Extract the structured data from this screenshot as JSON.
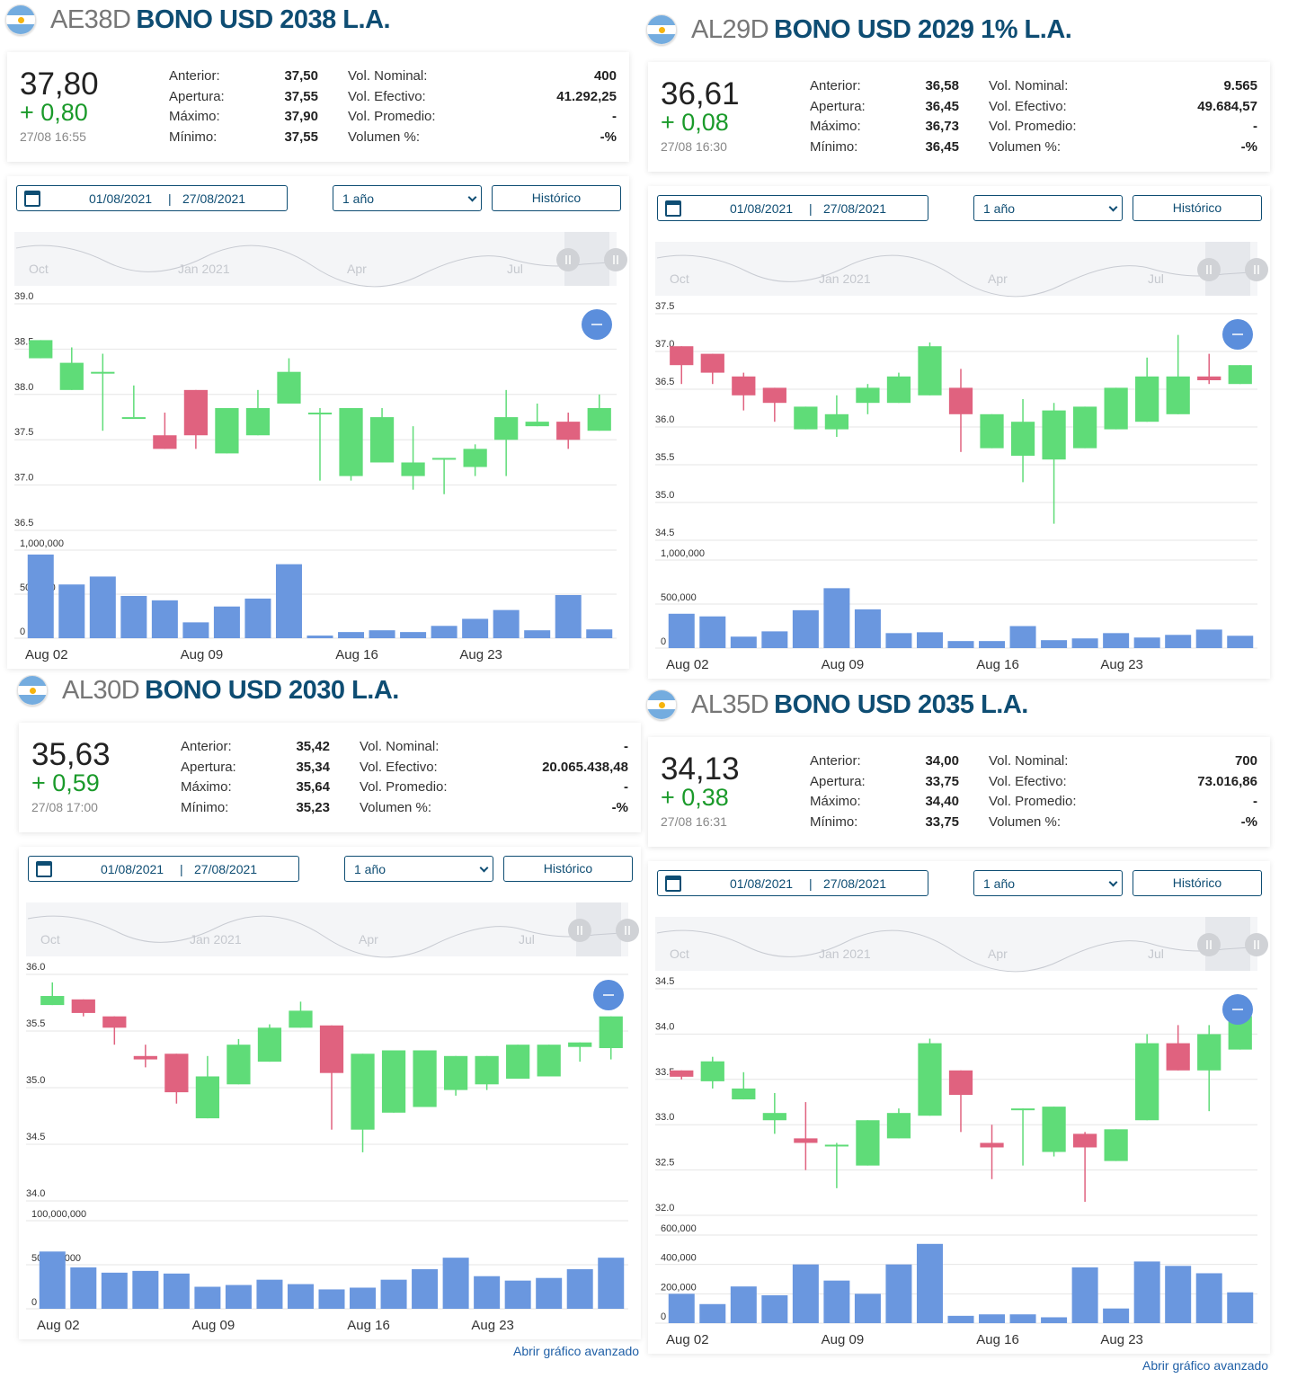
{
  "labels": {
    "anterior": "Anterior:",
    "apertura": "Apertura:",
    "maximo": "Máximo:",
    "minimo": "Mínimo:",
    "vol_nominal": "Vol. Nominal:",
    "vol_efectivo": "Vol. Efectivo:",
    "vol_promedio": "Vol. Promedio:",
    "volumen_pct": "Volumen %:",
    "date_sep": "|",
    "historico": "Histórico",
    "abrir": "Abrir gráfico avanzado"
  },
  "colors": {
    "up": "#5fdc78",
    "down": "#e0627f",
    "volume": "#6a97df",
    "title": "#0e4d73",
    "change": "#1a9a2a"
  },
  "panels": [
    {
      "ticker": "AE38D",
      "name": "BONO USD 2038 L.A.",
      "price": "37,80",
      "change": "+ 0,80",
      "time": "27/08 16:55",
      "anterior": "37,50",
      "apertura": "37,55",
      "maximo": "37,90",
      "minimo": "37,55",
      "vol_nominal": "400",
      "vol_efectivo": "41.292,25",
      "vol_promedio": "-",
      "volumen_pct": "-%",
      "date_from": "01/08/2021",
      "date_to": "27/08/2021",
      "range": "1 año",
      "advanced_link": "",
      "navigator_labels": [
        "Oct",
        "Jan 2021",
        "Apr",
        "Jul"
      ],
      "chart_data": {
        "type": "candlestick",
        "x_ticks": [
          "Aug 02",
          "Aug 09",
          "Aug 16",
          "Aug 23"
        ],
        "y_ticks": [
          "39.0",
          "38.5",
          "38.0",
          "37.5",
          "37.0",
          "36.5"
        ],
        "ylim": [
          36.5,
          39.0
        ],
        "vol_ticks": [
          "1,000,000",
          "500,000",
          "0"
        ],
        "vol_max": 1000000,
        "candles": [
          {
            "d": "Aug 02",
            "o": 38.3,
            "h": 38.5,
            "l": 38.3,
            "c": 38.5
          },
          {
            "d": "Aug 03",
            "o": 37.95,
            "h": 38.42,
            "l": 37.95,
            "c": 38.25
          },
          {
            "d": "Aug 04",
            "o": 38.15,
            "h": 38.35,
            "l": 37.5,
            "c": 38.15
          },
          {
            "d": "Aug 05",
            "o": 37.65,
            "h": 38.0,
            "l": 37.65,
            "c": 37.65
          },
          {
            "d": "Aug 06",
            "o": 37.45,
            "h": 37.7,
            "l": 37.3,
            "c": 37.3
          },
          {
            "d": "Aug 09",
            "o": 37.95,
            "h": 37.95,
            "l": 37.3,
            "c": 37.45
          },
          {
            "d": "Aug 10",
            "o": 37.25,
            "h": 37.75,
            "l": 37.25,
            "c": 37.75
          },
          {
            "d": "Aug 11",
            "o": 37.45,
            "h": 37.95,
            "l": 37.45,
            "c": 37.75
          },
          {
            "d": "Aug 12",
            "o": 37.8,
            "h": 38.3,
            "l": 37.8,
            "c": 38.15
          },
          {
            "d": "Aug 13",
            "o": 37.7,
            "h": 37.75,
            "l": 36.95,
            "c": 37.7
          },
          {
            "d": "Aug 16",
            "o": 37.0,
            "h": 37.75,
            "l": 36.95,
            "c": 37.75
          },
          {
            "d": "Aug 17",
            "o": 37.15,
            "h": 37.75,
            "l": 37.15,
            "c": 37.65
          },
          {
            "d": "Aug 18",
            "o": 37.0,
            "h": 37.55,
            "l": 36.85,
            "c": 37.15
          },
          {
            "d": "Aug 19",
            "o": 37.2,
            "h": 37.2,
            "l": 36.8,
            "c": 37.2
          },
          {
            "d": "Aug 23",
            "o": 37.1,
            "h": 37.35,
            "l": 37.0,
            "c": 37.3
          },
          {
            "d": "Aug 24",
            "o": 37.4,
            "h": 37.95,
            "l": 37.0,
            "c": 37.65
          },
          {
            "d": "Aug 25",
            "o": 37.55,
            "h": 37.8,
            "l": 37.55,
            "c": 37.6
          },
          {
            "d": "Aug 26",
            "o": 37.6,
            "h": 37.7,
            "l": 37.3,
            "c": 37.4
          },
          {
            "d": "Aug 27",
            "o": 37.5,
            "h": 37.9,
            "l": 37.5,
            "c": 37.75
          }
        ],
        "volumes": [
          950000,
          610000,
          700000,
          480000,
          430000,
          180000,
          360000,
          450000,
          840000,
          30000,
          70000,
          90000,
          70000,
          140000,
          220000,
          320000,
          90000,
          490000,
          100000
        ]
      }
    },
    {
      "ticker": "AL29D",
      "name": "BONO USD 2029 1% L.A.",
      "price": "36,61",
      "change": "+ 0,08",
      "time": "27/08 16:30",
      "anterior": "36,58",
      "apertura": "36,45",
      "maximo": "36,73",
      "minimo": "36,45",
      "vol_nominal": "9.565",
      "vol_efectivo": "49.684,57",
      "vol_promedio": "-",
      "volumen_pct": "-%",
      "date_from": "01/08/2021",
      "date_to": "27/08/2021",
      "range": "1 año",
      "advanced_link": "",
      "navigator_labels": [
        "Oct",
        "Jan 2021",
        "Apr",
        "Jul"
      ],
      "chart_data": {
        "type": "candlestick",
        "x_ticks": [
          "Aug 02",
          "Aug 09",
          "Aug 16",
          "Aug 23"
        ],
        "y_ticks": [
          "37.5",
          "37.0",
          "36.5",
          "36.0",
          "35.5",
          "35.0",
          "34.5"
        ],
        "ylim": [
          34.5,
          37.5
        ],
        "vol_ticks": [
          "1,000,000",
          "500,000",
          "0"
        ],
        "vol_max": 1000000,
        "candles": [
          {
            "d": "Aug 02",
            "o": 36.95,
            "h": 36.95,
            "l": 36.45,
            "c": 36.7
          },
          {
            "d": "Aug 03",
            "o": 36.85,
            "h": 36.85,
            "l": 36.45,
            "c": 36.6
          },
          {
            "d": "Aug 04",
            "o": 36.55,
            "h": 36.6,
            "l": 36.1,
            "c": 36.3
          },
          {
            "d": "Aug 05",
            "o": 36.4,
            "h": 36.4,
            "l": 35.95,
            "c": 36.2
          },
          {
            "d": "Aug 06",
            "o": 35.85,
            "h": 36.15,
            "l": 35.85,
            "c": 36.15
          },
          {
            "d": "Aug 09",
            "o": 35.85,
            "h": 36.3,
            "l": 35.75,
            "c": 36.05
          },
          {
            "d": "Aug 10",
            "o": 36.2,
            "h": 36.45,
            "l": 36.05,
            "c": 36.4
          },
          {
            "d": "Aug 11",
            "o": 36.2,
            "h": 36.6,
            "l": 36.2,
            "c": 36.55
          },
          {
            "d": "Aug 12",
            "o": 36.3,
            "h": 37.0,
            "l": 36.3,
            "c": 36.95
          },
          {
            "d": "Aug 13",
            "o": 36.4,
            "h": 36.65,
            "l": 35.55,
            "c": 36.05
          },
          {
            "d": "Aug 16",
            "o": 35.6,
            "h": 36.05,
            "l": 35.6,
            "c": 36.05
          },
          {
            "d": "Aug 17",
            "o": 35.5,
            "h": 36.25,
            "l": 35.15,
            "c": 35.95
          },
          {
            "d": "Aug 18",
            "o": 35.45,
            "h": 36.2,
            "l": 34.6,
            "c": 36.1
          },
          {
            "d": "Aug 19",
            "o": 35.6,
            "h": 36.15,
            "l": 35.6,
            "c": 36.15
          },
          {
            "d": "Aug 23",
            "o": 35.85,
            "h": 36.4,
            "l": 35.85,
            "c": 36.4
          },
          {
            "d": "Aug 24",
            "o": 35.95,
            "h": 36.8,
            "l": 35.95,
            "c": 36.55
          },
          {
            "d": "Aug 25",
            "o": 36.05,
            "h": 37.1,
            "l": 36.05,
            "c": 36.55
          },
          {
            "d": "Aug 26",
            "o": 36.55,
            "h": 36.85,
            "l": 36.45,
            "c": 36.5
          },
          {
            "d": "Aug 27",
            "o": 36.45,
            "h": 36.7,
            "l": 36.45,
            "c": 36.7
          }
        ],
        "volumes": [
          390000,
          360000,
          130000,
          190000,
          430000,
          680000,
          440000,
          170000,
          180000,
          80000,
          80000,
          250000,
          90000,
          110000,
          170000,
          120000,
          150000,
          210000,
          140000
        ]
      }
    },
    {
      "ticker": "AL30D",
      "name": "BONO USD 2030 L.A.",
      "price": "35,63",
      "change": "+ 0,59",
      "time": "27/08 17:00",
      "anterior": "35,42",
      "apertura": "35,34",
      "maximo": "35,64",
      "minimo": "35,23",
      "vol_nominal": "-",
      "vol_efectivo": "20.065.438,48",
      "vol_promedio": "-",
      "volumen_pct": "-%",
      "date_from": "01/08/2021",
      "date_to": "27/08/2021",
      "range": "1 año",
      "advanced_link": "Abrir gráfico avanzado",
      "navigator_labels": [
        "Oct",
        "Jan 2021",
        "Apr",
        "Jul"
      ],
      "chart_data": {
        "type": "candlestick",
        "x_ticks": [
          "Aug 02",
          "Aug 09",
          "Aug 16",
          "Aug 23"
        ],
        "y_ticks": [
          "36.0",
          "35.5",
          "35.0",
          "34.5",
          "34.0"
        ],
        "ylim": [
          34.0,
          36.0
        ],
        "vol_ticks": [
          "100,000,000",
          "50,000,000",
          "0"
        ],
        "vol_max": 100000000,
        "candles": [
          {
            "d": "Aug 02",
            "o": 35.65,
            "h": 35.85,
            "l": 35.65,
            "c": 35.73
          },
          {
            "d": "Aug 03",
            "o": 35.7,
            "h": 35.7,
            "l": 35.55,
            "c": 35.58
          },
          {
            "d": "Aug 04",
            "o": 35.55,
            "h": 35.55,
            "l": 35.3,
            "c": 35.45
          },
          {
            "d": "Aug 05",
            "o": 35.2,
            "h": 35.3,
            "l": 35.1,
            "c": 35.17
          },
          {
            "d": "Aug 06",
            "o": 35.22,
            "h": 35.22,
            "l": 34.78,
            "c": 34.88
          },
          {
            "d": "Aug 09",
            "o": 34.65,
            "h": 35.2,
            "l": 34.65,
            "c": 35.02
          },
          {
            "d": "Aug 10",
            "o": 34.95,
            "h": 35.35,
            "l": 34.95,
            "c": 35.3
          },
          {
            "d": "Aug 11",
            "o": 35.15,
            "h": 35.48,
            "l": 35.15,
            "c": 35.45
          },
          {
            "d": "Aug 12",
            "o": 35.45,
            "h": 35.68,
            "l": 35.45,
            "c": 35.6
          },
          {
            "d": "Aug 13",
            "o": 35.47,
            "h": 35.47,
            "l": 34.55,
            "c": 35.05
          },
          {
            "d": "Aug 16",
            "o": 34.55,
            "h": 35.22,
            "l": 34.35,
            "c": 35.22
          },
          {
            "d": "Aug 17",
            "o": 34.7,
            "h": 35.25,
            "l": 34.7,
            "c": 35.25
          },
          {
            "d": "Aug 18",
            "o": 34.75,
            "h": 35.25,
            "l": 34.75,
            "c": 35.25
          },
          {
            "d": "Aug 19",
            "o": 34.9,
            "h": 35.2,
            "l": 34.85,
            "c": 35.2
          },
          {
            "d": "Aug 23",
            "o": 34.95,
            "h": 35.2,
            "l": 34.9,
            "c": 35.2
          },
          {
            "d": "Aug 24",
            "o": 35.0,
            "h": 35.3,
            "l": 35.0,
            "c": 35.3
          },
          {
            "d": "Aug 25",
            "o": 35.02,
            "h": 35.3,
            "l": 35.02,
            "c": 35.3
          },
          {
            "d": "Aug 26",
            "o": 35.28,
            "h": 35.32,
            "l": 35.15,
            "c": 35.32
          },
          {
            "d": "Aug 27",
            "o": 35.27,
            "h": 35.55,
            "l": 35.17,
            "c": 35.55
          }
        ],
        "volumes": [
          65000000,
          47000000,
          41000000,
          43000000,
          40000000,
          25000000,
          27000000,
          33000000,
          28000000,
          22000000,
          24000000,
          33000000,
          45000000,
          58000000,
          37000000,
          32000000,
          35000000,
          45000000,
          58000000
        ]
      }
    },
    {
      "ticker": "AL35D",
      "name": "BONO USD 2035 L.A.",
      "price": "34,13",
      "change": "+ 0,38",
      "time": "27/08 16:31",
      "anterior": "34,00",
      "apertura": "33,75",
      "maximo": "34,40",
      "minimo": "33,75",
      "vol_nominal": "700",
      "vol_efectivo": "73.016,86",
      "vol_promedio": "-",
      "volumen_pct": "-%",
      "date_from": "01/08/2021",
      "date_to": "27/08/2021",
      "range": "1 año",
      "advanced_link": "Abrir gráfico avanzado",
      "navigator_labels": [
        "Oct",
        "Jan 2021",
        "Apr",
        "Jul"
      ],
      "chart_data": {
        "type": "candlestick",
        "x_ticks": [
          "Aug 02",
          "Aug 09",
          "Aug 16",
          "Aug 23"
        ],
        "y_ticks": [
          "34.5",
          "34.0",
          "33.5",
          "33.0",
          "32.5",
          "32.0"
        ],
        "ylim": [
          32.0,
          34.5
        ],
        "vol_ticks": [
          "600,000",
          "400,000",
          "200,000",
          "0"
        ],
        "vol_max": 600000,
        "candles": [
          {
            "d": "Aug 02",
            "o": 33.5,
            "h": 33.5,
            "l": 33.4,
            "c": 33.43
          },
          {
            "d": "Aug 03",
            "o": 33.38,
            "h": 33.65,
            "l": 33.3,
            "c": 33.6
          },
          {
            "d": "Aug 04",
            "o": 33.18,
            "h": 33.48,
            "l": 33.18,
            "c": 33.3
          },
          {
            "d": "Aug 05",
            "o": 32.95,
            "h": 33.25,
            "l": 32.8,
            "c": 33.03
          },
          {
            "d": "Aug 06",
            "o": 32.75,
            "h": 33.15,
            "l": 32.4,
            "c": 32.7
          },
          {
            "d": "Aug 09",
            "o": 32.68,
            "h": 32.7,
            "l": 32.2,
            "c": 32.68
          },
          {
            "d": "Aug 10",
            "o": 32.45,
            "h": 32.95,
            "l": 32.45,
            "c": 32.95
          },
          {
            "d": "Aug 11",
            "o": 32.75,
            "h": 33.08,
            "l": 32.75,
            "c": 33.03
          },
          {
            "d": "Aug 12",
            "o": 33.0,
            "h": 33.85,
            "l": 33.0,
            "c": 33.8
          },
          {
            "d": "Aug 13",
            "o": 33.5,
            "h": 33.5,
            "l": 32.82,
            "c": 33.23
          },
          {
            "d": "Aug 16",
            "o": 32.7,
            "h": 32.9,
            "l": 32.3,
            "c": 32.65
          },
          {
            "d": "Aug 17",
            "o": 33.08,
            "h": 33.08,
            "l": 32.45,
            "c": 33.08
          },
          {
            "d": "Aug 18",
            "o": 32.6,
            "h": 33.1,
            "l": 32.55,
            "c": 33.1
          },
          {
            "d": "Aug 19",
            "o": 32.8,
            "h": 32.82,
            "l": 32.05,
            "c": 32.65
          },
          {
            "d": "Aug 23",
            "o": 32.5,
            "h": 32.85,
            "l": 32.5,
            "c": 32.85
          },
          {
            "d": "Aug 24",
            "o": 32.95,
            "h": 33.9,
            "l": 32.95,
            "c": 33.8
          },
          {
            "d": "Aug 25",
            "o": 33.8,
            "h": 34.0,
            "l": 33.5,
            "c": 33.5
          },
          {
            "d": "Aug 26",
            "o": 33.5,
            "h": 34.0,
            "l": 33.05,
            "c": 33.9
          },
          {
            "d": "Aug 27",
            "o": 33.73,
            "h": 34.1,
            "l": 33.73,
            "c": 34.1
          }
        ],
        "volumes": [
          200000,
          130000,
          250000,
          190000,
          400000,
          290000,
          200000,
          400000,
          540000,
          50000,
          60000,
          60000,
          40000,
          380000,
          100000,
          420000,
          390000,
          340000,
          210000
        ]
      }
    }
  ]
}
